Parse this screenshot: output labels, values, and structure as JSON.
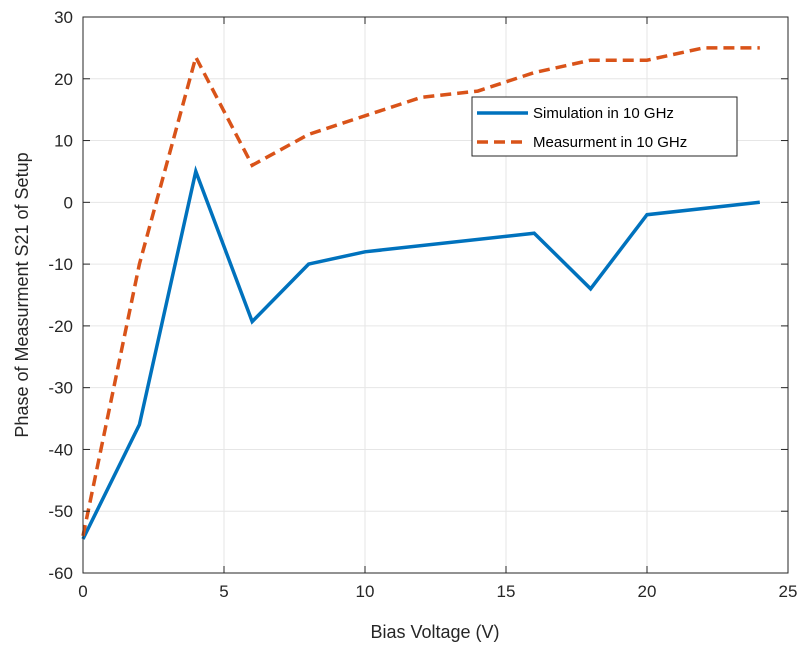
{
  "chart_data": {
    "type": "line",
    "title": "",
    "xlabel": "Bias Voltage (V)",
    "ylabel": "Phase of  Measurment S21 of Setup",
    "xlim": [
      0,
      25
    ],
    "ylim": [
      -60,
      30
    ],
    "xticks": [
      0,
      5,
      10,
      15,
      20,
      25
    ],
    "yticks": [
      -60,
      -50,
      -40,
      -30,
      -20,
      -10,
      0,
      10,
      20,
      30
    ],
    "grid": true,
    "legend_position": "top-right (inside)",
    "series": [
      {
        "name": "Simulation in 10 GHz",
        "color": "#0072BD",
        "line_style": "solid",
        "x": [
          0,
          2,
          4,
          6,
          8,
          10,
          16,
          18,
          20,
          24
        ],
        "y": [
          -54.5,
          -36,
          5,
          -19.3,
          -10,
          -8,
          -5,
          -14,
          -2,
          0
        ]
      },
      {
        "name": "Measurment in 10 GHz",
        "color": "#D95319",
        "line_style": "dashed",
        "x": [
          0,
          2,
          4,
          6,
          8,
          10,
          12,
          14,
          16,
          18,
          20,
          22,
          24
        ],
        "y": [
          -54,
          -10,
          23.5,
          6,
          11,
          14,
          17,
          18,
          21,
          23,
          23,
          25,
          25
        ]
      }
    ]
  }
}
